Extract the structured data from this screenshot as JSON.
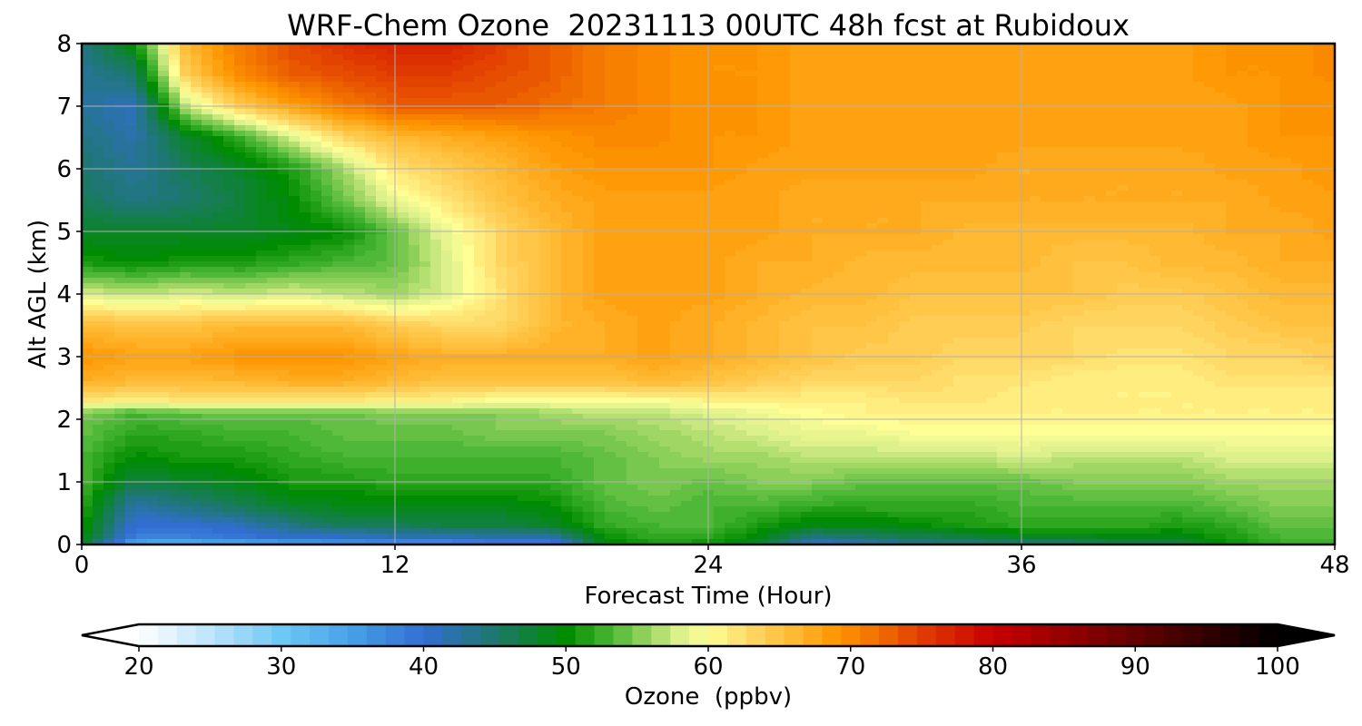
{
  "chart_data": {
    "type": "heatmap",
    "title": "WRF-Chem Ozone  20231113 00UTC 48h fcst at Rubidoux",
    "xlabel": "Forecast Time (Hour)",
    "ylabel": "Alt AGL (km)",
    "xlim": [
      0,
      48
    ],
    "ylim": [
      0,
      8
    ],
    "xticks": [
      0,
      12,
      24,
      36,
      48
    ],
    "yticks": [
      0,
      1,
      2,
      3,
      4,
      5,
      6,
      7,
      8
    ],
    "grid": true,
    "x": [
      0,
      2,
      4,
      6,
      8,
      10,
      12,
      14,
      16,
      18,
      20,
      22,
      24,
      26,
      28,
      30,
      32,
      34,
      36,
      38,
      40,
      42,
      44,
      46,
      48
    ],
    "y": [
      0,
      0.1,
      0.3,
      0.6,
      1.0,
      1.4,
      1.8,
      2.1,
      2.3,
      2.6,
      3.0,
      3.5,
      4.0,
      4.5,
      5.0,
      5.5,
      6.0,
      6.5,
      7.0,
      7.5,
      8.0
    ],
    "z": [
      [
        49,
        33,
        32,
        33,
        34,
        35,
        36,
        36,
        37,
        37,
        49,
        51,
        50,
        48,
        40,
        42,
        44,
        44,
        45,
        45,
        46,
        46,
        50,
        52,
        52
      ],
      [
        50,
        38,
        38,
        39,
        40,
        40,
        41,
        41,
        42,
        42,
        50,
        52,
        52,
        49,
        44,
        45,
        46,
        47,
        48,
        48,
        49,
        49,
        51,
        53,
        53
      ],
      [
        51,
        40,
        40,
        41,
        44,
        46,
        46,
        47,
        47,
        48,
        52,
        53,
        53,
        51,
        49,
        49,
        50,
        51,
        52,
        52,
        52,
        51,
        52,
        54,
        54
      ],
      [
        52,
        42,
        44,
        46,
        48,
        49,
        49,
        49,
        49,
        50,
        53,
        54,
        53,
        53,
        52,
        52,
        52,
        52,
        53,
        53,
        53,
        53,
        54,
        55,
        55
      ],
      [
        53,
        47,
        48,
        49,
        51,
        51,
        52,
        52,
        52,
        52,
        54,
        55,
        54,
        55,
        55,
        54,
        54,
        54,
        54,
        55,
        55,
        55,
        56,
        56,
        56
      ],
      [
        53,
        50,
        51,
        51,
        52,
        53,
        53,
        53,
        53,
        53,
        54,
        55,
        56,
        56,
        57,
        57,
        57,
        57,
        58,
        57,
        57,
        57,
        58,
        58,
        58
      ],
      [
        54,
        52,
        52,
        53,
        53,
        54,
        54,
        54,
        55,
        55,
        55,
        56,
        57,
        58,
        59,
        59,
        60,
        60,
        60,
        60,
        60,
        60,
        60,
        60,
        60
      ],
      [
        55,
        53,
        54,
        54,
        54,
        54,
        55,
        55,
        55,
        56,
        57,
        57,
        58,
        59,
        60,
        61,
        61,
        61,
        61,
        61,
        61,
        61,
        61,
        61,
        61
      ],
      [
        62,
        61,
        62,
        62,
        62,
        62,
        61,
        61,
        60,
        60,
        60,
        60,
        61,
        61,
        61,
        61,
        62,
        62,
        61,
        61,
        61,
        61,
        61,
        61,
        61
      ],
      [
        67,
        66,
        66,
        66,
        67,
        67,
        66,
        65,
        65,
        65,
        65,
        66,
        65,
        64,
        63,
        63,
        63,
        62,
        62,
        61,
        61,
        61,
        62,
        62,
        62
      ],
      [
        69,
        68,
        68,
        69,
        69,
        69,
        68,
        67,
        67,
        67,
        67,
        68,
        67,
        66,
        65,
        64,
        64,
        63,
        63,
        63,
        62,
        62,
        63,
        63,
        64
      ],
      [
        66,
        65,
        65,
        66,
        66,
        66,
        64,
        63,
        63,
        66,
        67,
        68,
        67,
        66,
        65,
        65,
        64,
        64,
        64,
        63,
        63,
        63,
        64,
        65,
        65
      ],
      [
        58,
        57,
        58,
        57,
        58,
        57,
        56,
        58,
        62,
        66,
        68,
        68,
        68,
        67,
        66,
        66,
        65,
        65,
        65,
        65,
        64,
        64,
        65,
        66,
        66
      ],
      [
        51,
        50,
        51,
        51,
        52,
        53,
        54,
        58,
        63,
        66,
        68,
        68,
        68,
        67,
        67,
        66,
        66,
        66,
        66,
        65,
        65,
        66,
        66,
        67,
        67
      ],
      [
        48,
        48,
        48,
        48,
        49,
        50,
        54,
        59,
        63,
        66,
        68,
        68,
        68,
        68,
        67,
        67,
        67,
        66,
        66,
        66,
        66,
        66,
        67,
        67,
        68
      ],
      [
        46,
        44,
        45,
        47,
        50,
        54,
        59,
        62,
        65,
        67,
        68,
        68,
        68,
        68,
        67,
        67,
        67,
        67,
        67,
        67,
        67,
        67,
        67,
        68,
        68
      ],
      [
        45,
        43,
        46,
        48,
        51,
        56,
        62,
        64,
        66,
        68,
        69,
        69,
        69,
        68,
        68,
        68,
        68,
        68,
        67,
        67,
        67,
        67,
        68,
        68,
        69
      ],
      [
        44,
        42,
        48,
        52,
        58,
        63,
        66,
        67,
        68,
        69,
        70,
        70,
        69,
        69,
        68,
        68,
        68,
        68,
        68,
        68,
        68,
        68,
        68,
        69,
        69
      ],
      [
        43,
        41,
        57,
        64,
        68,
        71,
        73,
        73,
        73,
        72,
        71,
        70,
        69,
        69,
        68,
        68,
        68,
        68,
        68,
        68,
        68,
        68,
        68,
        69,
        69
      ],
      [
        43,
        45,
        64,
        70,
        73,
        74,
        75,
        75,
        74,
        73,
        71,
        70,
        69,
        69,
        68,
        68,
        68,
        68,
        68,
        68,
        68,
        68,
        69,
        69,
        70
      ],
      [
        44,
        50,
        66,
        71,
        74,
        76,
        77,
        77,
        75,
        73,
        71,
        70,
        69,
        69,
        68,
        68,
        68,
        68,
        68,
        68,
        68,
        68,
        69,
        69,
        70
      ]
    ],
    "colorbar": {
      "label": "Ozone  (ppbv)",
      "ticks": [
        20,
        30,
        40,
        50,
        60,
        70,
        80,
        90,
        100
      ],
      "min": 20,
      "max": 100,
      "extend": "both"
    }
  }
}
